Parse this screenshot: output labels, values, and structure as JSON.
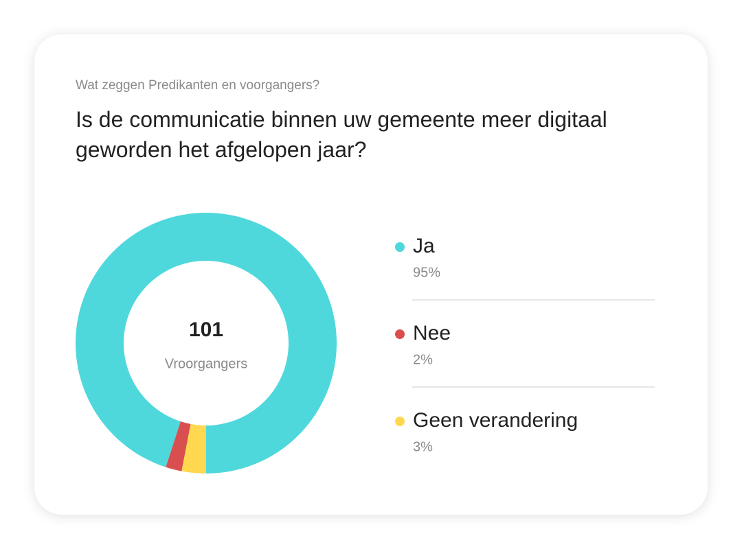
{
  "chart_data": {
    "type": "pie",
    "subtitle": "Wat zeggen Predikanten en voorgangers?",
    "title": "Is de communicatie binnen uw gemeente meer digitaal geworden het afgelopen jaar?",
    "center_value": 101,
    "center_label": "Vroorgangers",
    "categories": [
      "Ja",
      "Nee",
      "Geen verandering"
    ],
    "values": [
      95,
      2,
      3
    ],
    "value_labels": [
      "95%",
      "2%",
      "3%"
    ],
    "colors": [
      "#4fd8dc",
      "#d94f4f",
      "#ffd84f"
    ]
  }
}
